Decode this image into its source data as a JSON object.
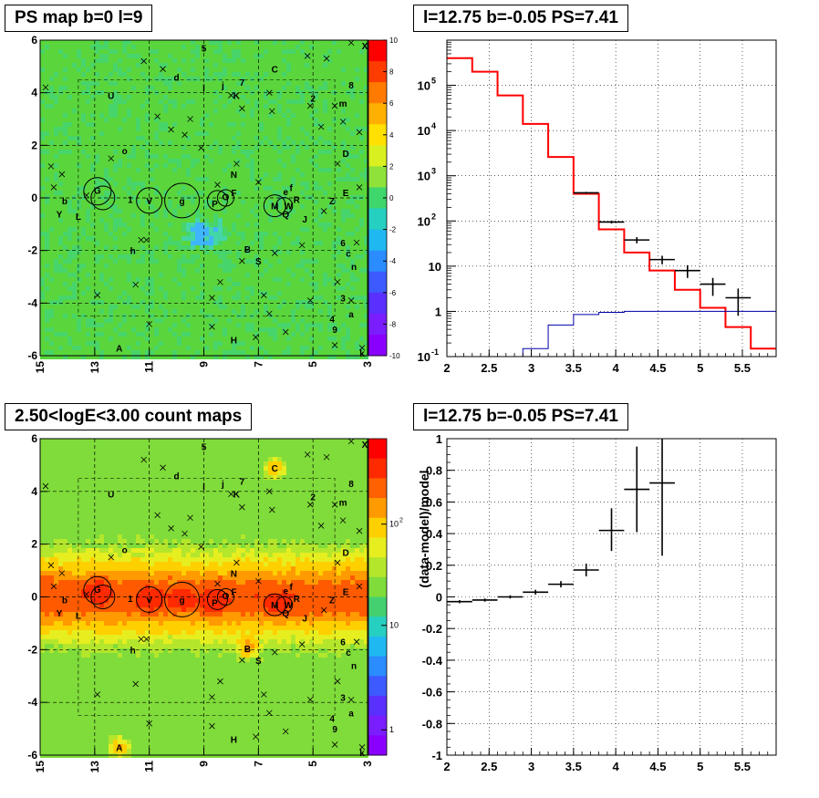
{
  "panels": {
    "tl_title": "PS map b=0 l=9",
    "tr_title": "l=12.75 b=-0.05 PS=7.41",
    "bl_title": "2.50<logE<3.00 count maps",
    "br_title": "l=12.75 b=-0.05 PS=7.41"
  },
  "chart_data": [
    {
      "type": "heatmap",
      "title": "PS map b=0 l=9",
      "x_ticks": [
        "15",
        "13",
        "11",
        "9",
        "7",
        "5",
        "3"
      ],
      "xlim": [
        15,
        3
      ],
      "y_ticks": [
        "-6",
        "-4",
        "-2",
        "0",
        "2",
        "4",
        "6"
      ],
      "ylim": [
        -6,
        6
      ],
      "colorbar_ticks": [
        "10",
        "8",
        "6",
        "4",
        "2",
        "0",
        "-2",
        "-4",
        "-6",
        "-8",
        "-10"
      ],
      "colorbar_range": [
        -10,
        10
      ],
      "background_color": "#55d63a",
      "features": [
        {
          "name": "blue-spot",
          "l": 9.0,
          "b": -1.4,
          "value": -4
        }
      ],
      "source_labels": [
        {
          "t": "5",
          "l": 9.0,
          "b": 5.7
        },
        {
          "t": "X",
          "l": 3.1,
          "b": 5.8
        },
        {
          "t": "d",
          "l": 10.0,
          "b": 4.6
        },
        {
          "t": "C",
          "l": 6.4,
          "b": 4.9
        },
        {
          "t": "7",
          "l": 7.6,
          "b": 4.4
        },
        {
          "t": "j",
          "l": 8.3,
          "b": 4.3
        },
        {
          "t": "l",
          "l": 9.0,
          "b": 4.2
        },
        {
          "t": "K",
          "l": 7.8,
          "b": 3.9
        },
        {
          "t": "U",
          "l": 12.4,
          "b": 3.9
        },
        {
          "t": "2",
          "l": 5.0,
          "b": 3.8
        },
        {
          "t": "8",
          "l": 3.6,
          "b": 4.3
        },
        {
          "t": "m",
          "l": 3.9,
          "b": 3.6
        },
        {
          "t": "o",
          "l": 11.9,
          "b": 1.8
        },
        {
          "t": "D",
          "l": 3.8,
          "b": 1.7
        },
        {
          "t": "N",
          "l": 7.9,
          "b": 0.9
        },
        {
          "t": "G",
          "l": 12.9,
          "b": 0.3
        },
        {
          "t": "b",
          "l": 14.1,
          "b": -0.1
        },
        {
          "t": "1",
          "l": 11.7,
          "b": -0.05
        },
        {
          "t": "V",
          "l": 11.0,
          "b": -0.1
        },
        {
          "t": "g",
          "l": 9.8,
          "b": -0.1
        },
        {
          "t": "P",
          "l": 8.6,
          "b": -0.2
        },
        {
          "t": "O",
          "l": 8.2,
          "b": 0.05
        },
        {
          "t": "F",
          "l": 7.9,
          "b": 0.2
        },
        {
          "t": "M",
          "l": 6.4,
          "b": -0.3
        },
        {
          "t": "e",
          "l": 6.0,
          "b": 0.25
        },
        {
          "t": "f",
          "l": 5.8,
          "b": 0.4
        },
        {
          "t": "W",
          "l": 5.9,
          "b": -0.3
        },
        {
          "t": "R",
          "l": 5.6,
          "b": -0.05
        },
        {
          "t": "Q",
          "l": 6.0,
          "b": -0.6
        },
        {
          "t": "Z",
          "l": 4.3,
          "b": -0.1
        },
        {
          "t": "E",
          "l": 3.8,
          "b": 0.2
        },
        {
          "t": "J",
          "l": 5.3,
          "b": -0.8
        },
        {
          "t": "Y",
          "l": 14.3,
          "b": -0.6
        },
        {
          "t": "L",
          "l": 13.6,
          "b": -0.7
        },
        {
          "t": "6",
          "l": 3.9,
          "b": -1.7
        },
        {
          "t": "c",
          "l": 3.7,
          "b": -2.1
        },
        {
          "t": "h",
          "l": 11.6,
          "b": -2.0
        },
        {
          "t": "B",
          "l": 7.4,
          "b": -1.95
        },
        {
          "t": "S",
          "l": 7.0,
          "b": -2.4
        },
        {
          "t": "n",
          "l": 3.5,
          "b": -2.6
        },
        {
          "t": "3",
          "l": 3.9,
          "b": -3.8
        },
        {
          "t": "a",
          "l": 3.6,
          "b": -4.4
        },
        {
          "t": "4",
          "l": 4.3,
          "b": -4.6
        },
        {
          "t": "9",
          "l": 4.2,
          "b": -5.0
        },
        {
          "t": "H",
          "l": 7.9,
          "b": -5.4
        },
        {
          "t": "A",
          "l": 12.1,
          "b": -5.7
        },
        {
          "t": "k",
          "l": 3.2,
          "b": -5.9
        }
      ]
    },
    {
      "type": "line",
      "title": "l=12.75 b=-0.05 PS=7.41",
      "xlim": [
        2,
        5.9
      ],
      "ylim": [
        0.1,
        1000000
      ],
      "y_scale": "log",
      "grid": true,
      "x_ticks": [
        "2",
        "2.5",
        "3",
        "3.5",
        "4",
        "4.5",
        "5",
        "5.5"
      ],
      "y_ticks": [
        "10^-1",
        "1",
        "10",
        "10^2",
        "10^3",
        "10^4",
        "10^5"
      ],
      "series": [
        {
          "kind": "step",
          "color": "#ff0000",
          "edges": [
            2.0,
            2.3,
            2.6,
            2.9,
            3.2,
            3.5,
            3.8,
            4.1,
            4.4,
            4.7,
            5.0,
            5.3,
            5.6,
            5.9
          ],
          "values": [
            400000,
            200000,
            60000,
            14000,
            2600,
            400,
            65,
            20,
            8,
            3,
            1.2,
            0.45,
            0.15
          ]
        },
        {
          "kind": "step",
          "color": "#0000aa",
          "edges": [
            2.0,
            2.3,
            2.6,
            2.9,
            3.2,
            3.5,
            3.8,
            4.1,
            4.4,
            4.7,
            5.0,
            5.3,
            5.6,
            5.9
          ],
          "values": [
            0.1,
            0.1,
            0.1,
            0.15,
            0.5,
            0.85,
            0.95,
            1.0,
            1.0,
            1.0,
            1.0,
            1.0,
            1.0,
            1.0
          ]
        },
        {
          "kind": "points",
          "color": "#000000",
          "x": [
            3.65,
            3.95,
            4.25,
            4.55,
            4.85,
            5.15,
            5.45
          ],
          "y": [
            420,
            95,
            38,
            14,
            8,
            4,
            2
          ],
          "y_low": [
            400,
            88,
            32,
            11,
            5.5,
            2.2,
            0.8
          ],
          "y_high": [
            440,
            102,
            44,
            17,
            10.5,
            5.5,
            3.2
          ]
        }
      ]
    },
    {
      "type": "heatmap",
      "title": "2.50<logE<3.00 count maps",
      "x_ticks": [
        "15",
        "13",
        "11",
        "9",
        "7",
        "5",
        "3"
      ],
      "xlim": [
        15,
        3
      ],
      "y_ticks": [
        "-6",
        "-4",
        "-2",
        "0",
        "2",
        "4",
        "6"
      ],
      "ylim": [
        -6,
        6
      ],
      "colorbar_ticks": [
        "10^2",
        "10",
        "1"
      ],
      "colorbar_scale": "log",
      "features": [
        {
          "name": "source-C",
          "l": 6.4,
          "b": 4.9
        },
        {
          "name": "source-B",
          "l": 7.4,
          "b": -1.95
        },
        {
          "name": "source-A",
          "l": 12.1,
          "b": -5.7
        }
      ]
    },
    {
      "type": "scatter",
      "title": "l=12.75 b=-0.05 PS=7.41",
      "ylabel": "(data-model)/model",
      "xlim": [
        2,
        5.9
      ],
      "ylim": [
        -1,
        1
      ],
      "grid": true,
      "x_ticks": [
        "2",
        "2.5",
        "3",
        "3.5",
        "4",
        "4.5",
        "5",
        "5.5"
      ],
      "y_ticks": [
        "-1",
        "-0.8",
        "-0.6",
        "-0.4",
        "-0.2",
        "0",
        "0.2",
        "0.4",
        "0.6",
        "0.8",
        "1"
      ],
      "x": [
        2.15,
        2.45,
        2.75,
        3.05,
        3.35,
        3.65,
        3.95,
        4.25,
        4.55
      ],
      "y": [
        -0.03,
        -0.02,
        0.0,
        0.03,
        0.08,
        0.17,
        0.42,
        0.68,
        0.72
      ],
      "x_err": 0.15,
      "y_err_low": [
        0.01,
        0.01,
        0.01,
        0.015,
        0.02,
        0.04,
        0.13,
        0.27,
        0.46
      ],
      "y_err_high": [
        0.01,
        0.01,
        0.01,
        0.015,
        0.02,
        0.04,
        0.14,
        0.27,
        0.3
      ]
    }
  ]
}
